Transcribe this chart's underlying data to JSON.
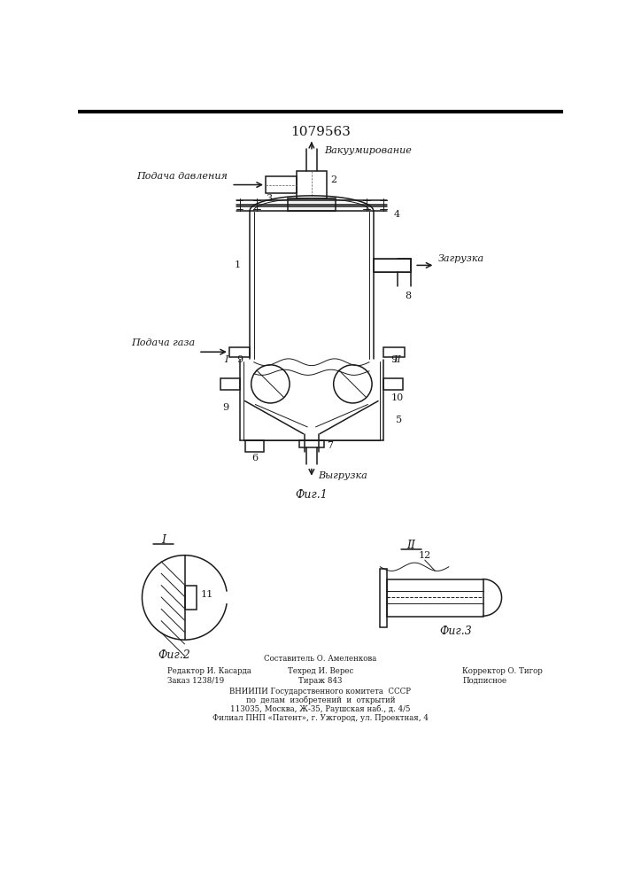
{
  "patent_number": "1079563",
  "bg_color": "#ffffff",
  "line_color": "#1a1a1a",
  "title_fontsize": 11,
  "label_fontsize": 8,
  "small_fontsize": 6.2,
  "labels": {
    "vacuuming": "Вакуумирование",
    "pressure": "Подача давления",
    "gas": "Подача газа",
    "loading": "Загрузка",
    "unloading": "Выгрузка",
    "fig1": "Фиг.1",
    "fig2": "Фиг.2",
    "fig3": "Фиг.3"
  },
  "footer_col1": [
    "Редактор И. Касарда",
    "Заказ 1238/19"
  ],
  "footer_col2": [
    "Составитель О. Амеленкова",
    "Техред И. Верес",
    "Тираж 843"
  ],
  "footer_col3": [
    "Корректор О. Тигор",
    "Подписное"
  ],
  "footer_vnipi": [
    "ВНИИПИ Государственного комитета  СССР",
    "по  делам  изобретений  и  открытий",
    "113035, Москва, Ж-35, Раушская наб., д. 4/5",
    "Филиал ПНП «Патент», г. Ужгород, ул. Проектная, 4"
  ]
}
